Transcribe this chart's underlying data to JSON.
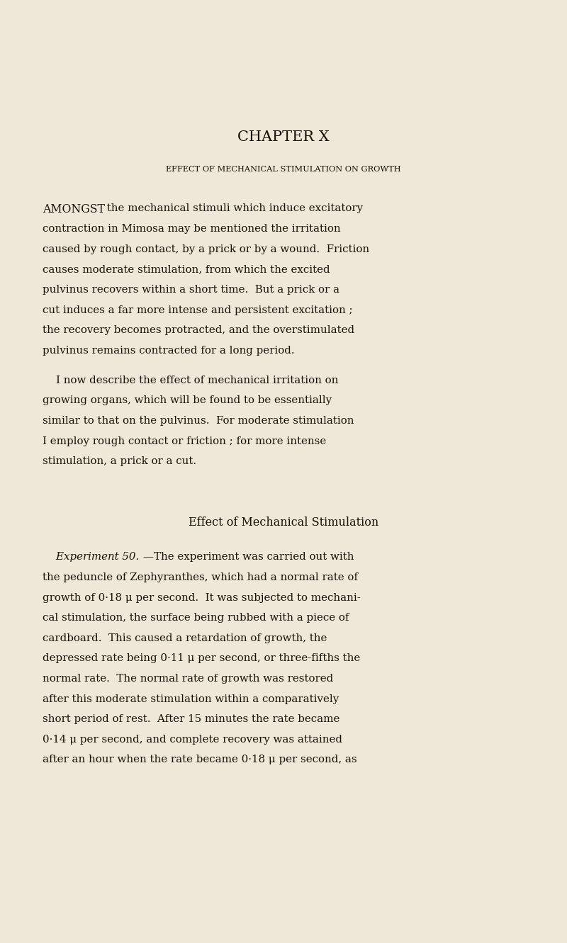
{
  "background_color": "#ede8d8",
  "text_color": "#1a1008",
  "page_width": 8.0,
  "page_height": 13.31,
  "chapter_title": "CHAPTER X",
  "chapter_subtitle": "EFFECT OF MECHANICAL STIMULATION ON GROWTH",
  "paragraph1_lines": [
    "AMONGST the mechanical stimuli which induce excitatory",
    "contraction in Mimosa may be mentioned the irritation",
    "caused by rough contact, by a prick or by a wound.  Friction",
    "causes moderate stimulation, from which the excited",
    "pulvinus recovers within a short time.  But a prick or a",
    "cut induces a far more intense and persistent excitation ;",
    "the recovery becomes protracted, and the overstimulated",
    "pulvinus remains contracted for a long period."
  ],
  "paragraph2_lines": [
    "    I now describe the effect of mechanical irritation on",
    "growing organs, which will be found to be essentially",
    "similar to that on the pulvinus.  For moderate stimulation",
    "I employ rough contact or friction ; for more intense",
    "stimulation, a prick or a cut."
  ],
  "section_title": "Effect of Mechanical Stimulation",
  "experiment_lines": [
    "    Experiment 50.—The experiment was carried out with",
    "the peduncle of Zephyranthes, which had a normal rate of",
    "growth of 0·18 μ per second.  It was subjected to mechani-",
    "cal stimulation, the surface being rubbed with a piece of",
    "cardboard.  This caused a retardation of growth, the",
    "depressed rate being 0·11 μ per second, or three-fifths the",
    "normal rate.  The normal rate of growth was restored",
    "after this moderate stimulation within a comparatively",
    "short period of rest.  After 15 minutes the rate became",
    "0·14 μ per second, and complete recovery was attained",
    "after an hour when the rate became 0·18 μ per second, as"
  ]
}
